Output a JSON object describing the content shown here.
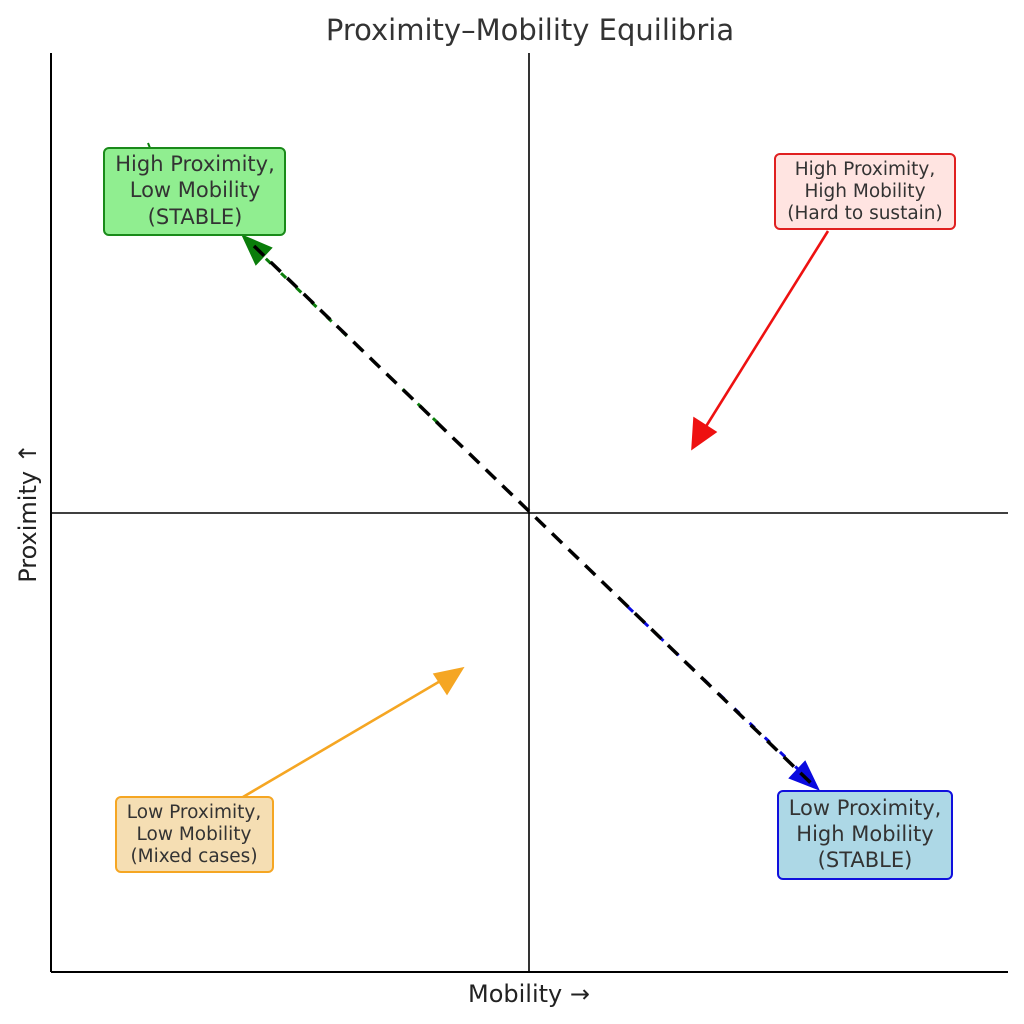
{
  "title": "Proximity–Mobility Equilibria",
  "axes": {
    "x_label": "Mobility →",
    "y_label": "Proximity ↑"
  },
  "quadrants": {
    "high_prox_low_mob": {
      "lines": [
        "High Proximity,",
        "Low Mobility",
        "(STABLE)"
      ],
      "fill": "#90ee90",
      "border": "#1a8a1a",
      "arrow_color": "#0a7d0a"
    },
    "high_prox_high_mob": {
      "lines": [
        "High Proximity,",
        "High Mobility",
        "(Hard to sustain)"
      ],
      "fill": "#ffe4e1",
      "border": "#e02020",
      "arrow_color": "#ee1111"
    },
    "low_prox_low_mob": {
      "lines": [
        "Low Proximity,",
        "Low Mobility",
        "(Mixed cases)"
      ],
      "fill": "#f5deb3",
      "border": "#f5a623",
      "arrow_color": "#f5a623"
    },
    "low_prox_high_mob": {
      "lines": [
        "Low Proximity,",
        "High Mobility",
        "(STABLE)"
      ],
      "fill": "#add8e6",
      "border": "#1010dd",
      "arrow_color": "#0a0adf"
    }
  },
  "equilibrium_line_color": "#000000"
}
